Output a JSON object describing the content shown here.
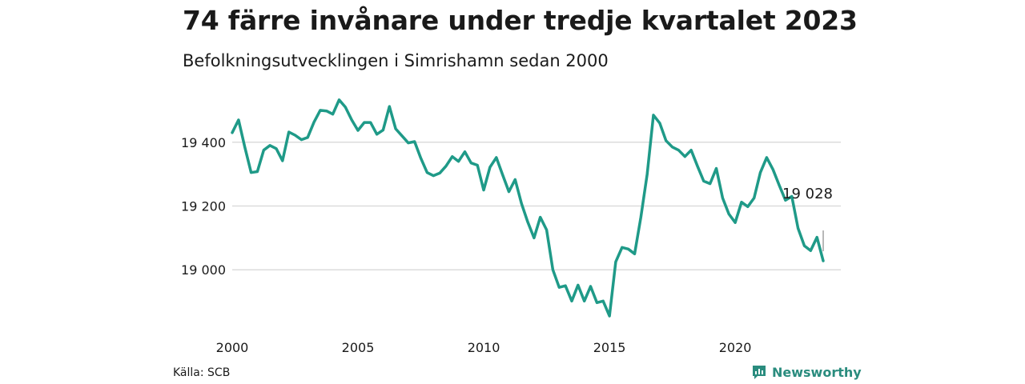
{
  "title": "74 färre invånare under tredje kvartalet 2023",
  "subtitle": "Befolkningsutvecklingen i Simrishamn sedan 2000",
  "source": "Källa: SCB",
  "brand": {
    "name": "Newsworthy",
    "icon": "newsworthy-logo-icon",
    "color": "#2a8c7e"
  },
  "chart_data": {
    "type": "line",
    "title": "74 färre invånare under tredje kvartalet 2023",
    "subtitle": "Befolkningsutvecklingen i Simrishamn sedan 2000",
    "xlabel": "",
    "ylabel": "",
    "x_ticks": [
      "2000",
      "2005",
      "2010",
      "2015",
      "2020"
    ],
    "y_ticks": [
      "19 000",
      "19 200",
      "19 400"
    ],
    "ylim": [
      18830,
      19560
    ],
    "grid": "horizontal",
    "line_color": "#1f9a88",
    "annotation": {
      "label": "19 028",
      "value": 19028
    },
    "series": [
      {
        "x": [
          2000.0,
          2000.25,
          2000.5,
          2000.75,
          2001.0,
          2001.25,
          2001.5,
          2001.75,
          2002.0,
          2002.25,
          2002.5,
          2002.75,
          2003.0,
          2003.25,
          2003.5,
          2003.75,
          2004.0,
          2004.25,
          2004.5,
          2004.75,
          2005.0,
          2005.25,
          2005.5,
          2005.75,
          2006.0,
          2006.25,
          2006.5,
          2006.75,
          2007.0,
          2007.25,
          2007.5,
          2007.75,
          2008.0,
          2008.25,
          2008.5,
          2008.75,
          2009.0,
          2009.25,
          2009.5,
          2009.75,
          2010.0,
          2010.25,
          2010.5,
          2010.75,
          2011.0,
          2011.25,
          2011.5,
          2011.75,
          2012.0,
          2012.25,
          2012.5,
          2012.75,
          2013.0,
          2013.25,
          2013.5,
          2013.75,
          2014.0,
          2014.25,
          2014.5,
          2014.75,
          2015.0,
          2015.25,
          2015.5,
          2015.75,
          2016.0,
          2016.25,
          2016.5,
          2016.75,
          2017.0,
          2017.25,
          2017.5,
          2017.75,
          2018.0,
          2018.25,
          2018.5,
          2018.75,
          2019.0,
          2019.25,
          2019.5,
          2019.75,
          2020.0,
          2020.25,
          2020.5,
          2020.75,
          2021.0,
          2021.25,
          2021.5,
          2021.75,
          2022.0,
          2022.25,
          2022.5,
          2022.75,
          2023.0,
          2023.25,
          2023.5
        ],
        "values": [
          19430,
          19470,
          19385,
          19305,
          19308,
          19375,
          19390,
          19380,
          19342,
          19432,
          19422,
          19408,
          19415,
          19463,
          19500,
          19498,
          19488,
          19533,
          19510,
          19470,
          19437,
          19462,
          19462,
          19425,
          19438,
          19512,
          19442,
          19420,
          19398,
          19402,
          19350,
          19305,
          19295,
          19303,
          19325,
          19355,
          19340,
          19370,
          19335,
          19328,
          19250,
          19322,
          19352,
          19298,
          19245,
          19283,
          19208,
          19150,
          19100,
          19165,
          19125,
          19000,
          18945,
          18950,
          18902,
          18952,
          18902,
          18948,
          18897,
          18902,
          18855,
          19025,
          19070,
          19065,
          19050,
          19165,
          19300,
          19485,
          19460,
          19405,
          19385,
          19375,
          19355,
          19375,
          19325,
          19278,
          19270,
          19318,
          19225,
          19175,
          19148,
          19212,
          19198,
          19225,
          19305,
          19352,
          19315,
          19265,
          19218,
          19230,
          19130,
          19075,
          19060,
          19102,
          19028
        ]
      }
    ]
  }
}
